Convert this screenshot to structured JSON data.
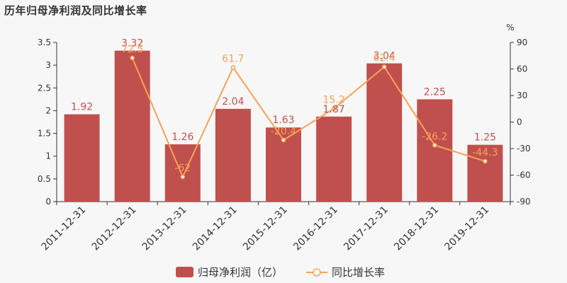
{
  "chart_data": {
    "type": "bar+line",
    "title": "历年归母净利润及同比增长率",
    "categories": [
      "2011-12-31",
      "2012-12-31",
      "2013-12-31",
      "2014-12-31",
      "2015-12-31",
      "2016-12-31",
      "2017-12-31",
      "2018-12-31",
      "2019-12-31"
    ],
    "series": [
      {
        "name": "归母净利润（亿）",
        "type": "bar",
        "axis": "left",
        "color": "#c0504d",
        "values": [
          1.92,
          3.32,
          1.26,
          2.04,
          1.63,
          1.87,
          3.04,
          2.25,
          1.25
        ],
        "labels": [
          "1.92",
          "3.32",
          "1.26",
          "2.04",
          "1.63",
          "1.87",
          "3.04",
          "2.25",
          "1.25"
        ]
      },
      {
        "name": "同比增长率",
        "type": "line",
        "axis": "right",
        "color": "#f5a259",
        "values": [
          null,
          72.5,
          -62,
          61.7,
          -20.4,
          15.2,
          62.4,
          -26.2,
          -44.3
        ],
        "labels": [
          "",
          "72.5",
          "-62",
          "61.7",
          "-20.4",
          "15.2",
          "62.4",
          "-26.2",
          "-44.3"
        ]
      }
    ],
    "left_axis": {
      "min": 0,
      "max": 3.5,
      "ticks": [
        "0",
        "0.5",
        "1",
        "1.5",
        "2",
        "2.5",
        "3",
        "3.5"
      ]
    },
    "right_axis": {
      "min": -90,
      "max": 90,
      "unit": "%",
      "ticks": [
        "-90",
        "-60",
        "-30",
        "0",
        "30",
        "60",
        "90"
      ]
    },
    "legend_position": "bottom-center",
    "grid": false
  }
}
